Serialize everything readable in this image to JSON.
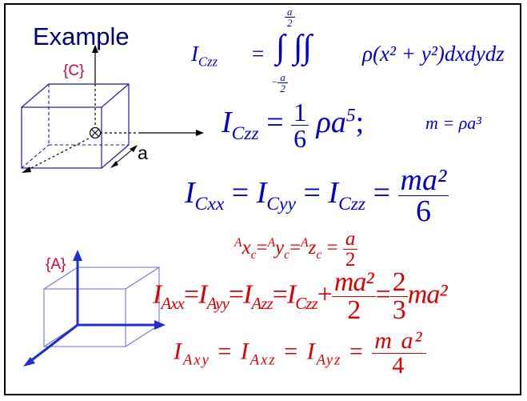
{
  "title": "Example",
  "frames": {
    "c": "{C}",
    "a": "{A}"
  },
  "dimension": "a",
  "colors": {
    "title": "#00007a",
    "blue": "#0000cc",
    "red": "#dd0000",
    "frame_label": "#dd0033",
    "axis_red": "#dd0033",
    "axis_blue": "#1f2ecf",
    "cube_blue": "#1a1aa8",
    "cube_light": "#6f78d8"
  },
  "equations": {
    "eq1": {
      "I": "I",
      "sub": "Czz",
      "eq": "=",
      "upper_num": "a",
      "upper_den": "2",
      "lower_neg": "−",
      "lower_num": "a",
      "lower_den": "2",
      "ints": "∫ ∫∫",
      "body": "ρ(x² + y²)dxdydz"
    },
    "eq2": {
      "I": "I",
      "sub": "Czz",
      "eq": "=",
      "num": "1",
      "den": "6",
      "rho": "ρa",
      "exp": "5",
      "semi": ";",
      "mass": "m = ρa³"
    },
    "eq3": {
      "I1": "I",
      "s1": "Cxx",
      "I2": "I",
      "s2": "Cyy",
      "I3": "I",
      "s3": "Czz",
      "eq": "=",
      "num": "ma²",
      "den": "6"
    },
    "eq4": {
      "p1": "A",
      "v1": "x",
      "s1": "c",
      "p2": "A",
      "v2": "y",
      "s2": "c",
      "p3": "A",
      "v3": "z",
      "s3": "c",
      "eq": "=",
      "num": "a",
      "den": "2"
    },
    "eq5": {
      "I1": "I",
      "s1": "Axx",
      "I2": "I",
      "s2": "Ayy",
      "I3": "I",
      "s3": "Azz",
      "I4": "I",
      "s4": "Czz",
      "plus": "+",
      "num1": "ma²",
      "den1": "2",
      "eq": "=",
      "num2": "2",
      "den2": "3",
      "tail": "ma²"
    },
    "eq6": {
      "I1": "I",
      "s1": "Axy",
      "I2": "I",
      "s2": "Axz",
      "I3": "I",
      "s3": "Ayz",
      "eq": "=",
      "num": "m a²",
      "den": "4"
    }
  }
}
